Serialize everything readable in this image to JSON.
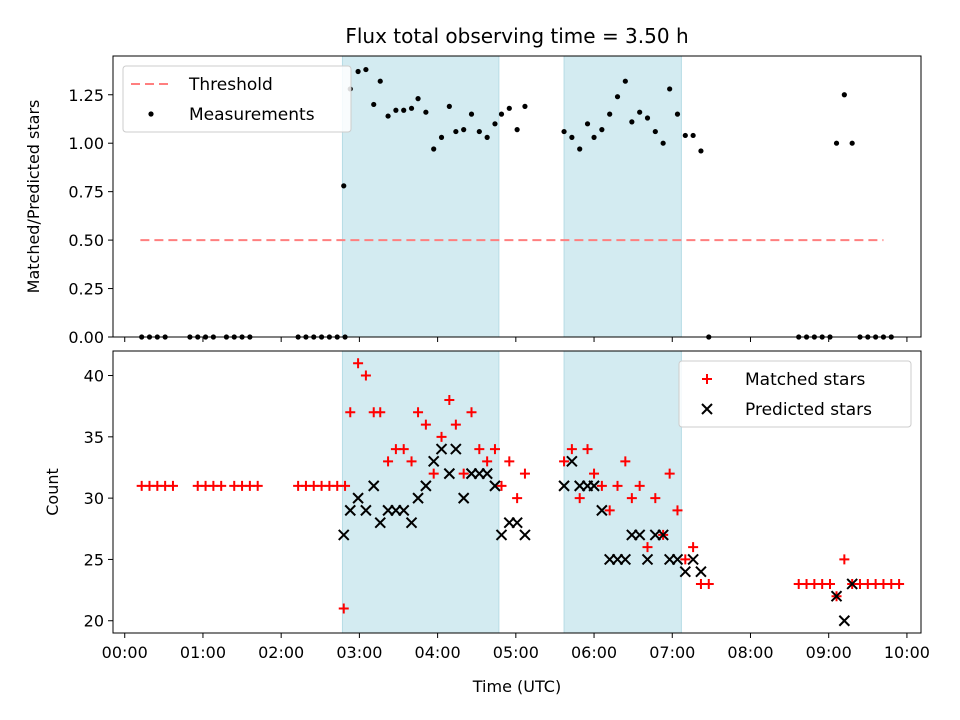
{
  "chart_data": {
    "title": "Flux total observing time = 3.50 h",
    "xlabel": "Time (UTC)",
    "x_ticks": [
      "00:00",
      "01:00",
      "02:00",
      "03:00",
      "04:00",
      "05:00",
      "06:00",
      "07:00",
      "08:00",
      "09:00",
      "10:00"
    ],
    "xlim_hours": [
      -0.15,
      10.18
    ],
    "shaded_spans": [
      {
        "start": "02:47",
        "end": "04:47",
        "color": "#d3ebf1"
      },
      {
        "start": "05:37",
        "end": "07:07",
        "color": "#d3ebf1"
      }
    ],
    "panels": [
      {
        "type": "scatter",
        "ylabel": "Matched/Predicted stars",
        "ylim": [
          0,
          1.45
        ],
        "y_ticks": [
          "0.00",
          "0.25",
          "0.50",
          "0.75",
          "1.00",
          "1.25"
        ],
        "legend_position": "top-left",
        "series": [
          {
            "name": "Threshold",
            "style": "dashed-line",
            "color": "#ff7f7f",
            "points": [
              [
                "00:12",
                0.5
              ],
              [
                "09:42",
                0.5
              ]
            ]
          },
          {
            "name": "Measurements",
            "style": "dot",
            "color": "#000000",
            "points": [
              [
                "00:13",
                0
              ],
              [
                "00:19",
                0
              ],
              [
                "00:25",
                0
              ],
              [
                "00:31",
                0
              ],
              [
                "00:50",
                0
              ],
              [
                "00:56",
                0
              ],
              [
                "01:02",
                0
              ],
              [
                "01:08",
                0
              ],
              [
                "01:18",
                0
              ],
              [
                "01:24",
                0
              ],
              [
                "01:30",
                0
              ],
              [
                "01:36",
                0
              ],
              [
                "02:13",
                0
              ],
              [
                "02:19",
                0
              ],
              [
                "02:25",
                0
              ],
              [
                "02:31",
                0
              ],
              [
                "02:37",
                0
              ],
              [
                "02:43",
                0
              ],
              [
                "02:49",
                0
              ],
              [
                "02:48",
                0.78
              ],
              [
                "02:53",
                1.28
              ],
              [
                "02:59",
                1.37
              ],
              [
                "03:05",
                1.38
              ],
              [
                "03:11",
                1.2
              ],
              [
                "03:16",
                1.32
              ],
              [
                "03:22",
                1.14
              ],
              [
                "03:28",
                1.17
              ],
              [
                "03:34",
                1.17
              ],
              [
                "03:40",
                1.18
              ],
              [
                "03:45",
                1.23
              ],
              [
                "03:51",
                1.16
              ],
              [
                "03:57",
                0.97
              ],
              [
                "04:03",
                1.03
              ],
              [
                "04:09",
                1.19
              ],
              [
                "04:14",
                1.06
              ],
              [
                "04:20",
                1.07
              ],
              [
                "04:26",
                1.15
              ],
              [
                "04:32",
                1.06
              ],
              [
                "04:38",
                1.03
              ],
              [
                "04:44",
                1.1
              ],
              [
                "04:49",
                1.15
              ],
              [
                "04:55",
                1.18
              ],
              [
                "05:01",
                1.07
              ],
              [
                "05:07",
                1.19
              ],
              [
                "05:37",
                1.06
              ],
              [
                "05:43",
                1.03
              ],
              [
                "05:49",
                0.97
              ],
              [
                "05:55",
                1.1
              ],
              [
                "06:00",
                1.03
              ],
              [
                "06:06",
                1.07
              ],
              [
                "06:12",
                1.15
              ],
              [
                "06:18",
                1.24
              ],
              [
                "06:24",
                1.32
              ],
              [
                "06:29",
                1.11
              ],
              [
                "06:35",
                1.16
              ],
              [
                "06:41",
                1.13
              ],
              [
                "06:47",
                1.06
              ],
              [
                "06:53",
                1.0
              ],
              [
                "06:58",
                1.28
              ],
              [
                "07:04",
                1.15
              ],
              [
                "07:10",
                1.04
              ],
              [
                "07:16",
                1.04
              ],
              [
                "07:22",
                0.96
              ],
              [
                "07:28",
                0
              ],
              [
                "08:37",
                0
              ],
              [
                "08:43",
                0
              ],
              [
                "08:49",
                0
              ],
              [
                "08:55",
                0
              ],
              [
                "09:01",
                0
              ],
              [
                "09:06",
                1.0
              ],
              [
                "09:12",
                1.25
              ],
              [
                "09:18",
                1.0
              ],
              [
                "09:24",
                0
              ],
              [
                "09:30",
                0
              ],
              [
                "09:36",
                0
              ],
              [
                "09:42",
                0
              ],
              [
                "09:48",
                0
              ]
            ]
          }
        ]
      },
      {
        "type": "scatter",
        "ylabel": "Count",
        "ylim": [
          19,
          42
        ],
        "y_ticks": [
          "20",
          "25",
          "30",
          "35",
          "40"
        ],
        "legend_position": "top-right",
        "series": [
          {
            "name": "Matched stars",
            "style": "plus",
            "color": "#ff0000",
            "points": [
              [
                "00:13",
                31
              ],
              [
                "00:19",
                31
              ],
              [
                "00:25",
                31
              ],
              [
                "00:31",
                31
              ],
              [
                "00:37",
                31
              ],
              [
                "00:56",
                31
              ],
              [
                "01:02",
                31
              ],
              [
                "01:08",
                31
              ],
              [
                "01:14",
                31
              ],
              [
                "01:24",
                31
              ],
              [
                "01:30",
                31
              ],
              [
                "01:36",
                31
              ],
              [
                "01:42",
                31
              ],
              [
                "02:13",
                31
              ],
              [
                "02:19",
                31
              ],
              [
                "02:25",
                31
              ],
              [
                "02:31",
                31
              ],
              [
                "02:37",
                31
              ],
              [
                "02:43",
                31
              ],
              [
                "02:49",
                31
              ],
              [
                "02:48",
                21
              ],
              [
                "02:53",
                37
              ],
              [
                "02:59",
                41
              ],
              [
                "03:05",
                40
              ],
              [
                "03:11",
                37
              ],
              [
                "03:16",
                37
              ],
              [
                "03:22",
                33
              ],
              [
                "03:28",
                34
              ],
              [
                "03:34",
                34
              ],
              [
                "03:40",
                33
              ],
              [
                "03:45",
                37
              ],
              [
                "03:51",
                36
              ],
              [
                "03:57",
                32
              ],
              [
                "04:03",
                35
              ],
              [
                "04:09",
                38
              ],
              [
                "04:14",
                36
              ],
              [
                "04:20",
                32
              ],
              [
                "04:26",
                37
              ],
              [
                "04:32",
                34
              ],
              [
                "04:38",
                33
              ],
              [
                "04:44",
                34
              ],
              [
                "04:49",
                31
              ],
              [
                "04:55",
                33
              ],
              [
                "05:01",
                30
              ],
              [
                "05:07",
                32
              ],
              [
                "05:37",
                33
              ],
              [
                "05:43",
                34
              ],
              [
                "05:49",
                30
              ],
              [
                "05:55",
                34
              ],
              [
                "06:00",
                32
              ],
              [
                "06:06",
                31
              ],
              [
                "06:12",
                29
              ],
              [
                "06:18",
                31
              ],
              [
                "06:24",
                33
              ],
              [
                "06:29",
                30
              ],
              [
                "06:35",
                31
              ],
              [
                "06:41",
                26
              ],
              [
                "06:47",
                30
              ],
              [
                "06:53",
                27
              ],
              [
                "06:58",
                32
              ],
              [
                "07:04",
                29
              ],
              [
                "07:10",
                25
              ],
              [
                "07:16",
                26
              ],
              [
                "07:22",
                23
              ],
              [
                "07:28",
                23
              ],
              [
                "08:37",
                23
              ],
              [
                "08:43",
                23
              ],
              [
                "08:49",
                23
              ],
              [
                "08:55",
                23
              ],
              [
                "09:01",
                23
              ],
              [
                "09:06",
                22
              ],
              [
                "09:12",
                25
              ],
              [
                "09:18",
                23
              ],
              [
                "09:24",
                23
              ],
              [
                "09:30",
                23
              ],
              [
                "09:36",
                23
              ],
              [
                "09:42",
                23
              ],
              [
                "09:48",
                23
              ],
              [
                "09:54",
                23
              ]
            ]
          },
          {
            "name": "Predicted stars",
            "style": "x",
            "color": "#000000",
            "points": [
              [
                "02:48",
                27
              ],
              [
                "02:53",
                29
              ],
              [
                "02:59",
                30
              ],
              [
                "03:05",
                29
              ],
              [
                "03:11",
                31
              ],
              [
                "03:16",
                28
              ],
              [
                "03:22",
                29
              ],
              [
                "03:28",
                29
              ],
              [
                "03:34",
                29
              ],
              [
                "03:40",
                28
              ],
              [
                "03:45",
                30
              ],
              [
                "03:51",
                31
              ],
              [
                "03:57",
                33
              ],
              [
                "04:03",
                34
              ],
              [
                "04:09",
                32
              ],
              [
                "04:14",
                34
              ],
              [
                "04:20",
                30
              ],
              [
                "04:26",
                32
              ],
              [
                "04:32",
                32
              ],
              [
                "04:38",
                32
              ],
              [
                "04:44",
                31
              ],
              [
                "04:49",
                27
              ],
              [
                "04:55",
                28
              ],
              [
                "05:01",
                28
              ],
              [
                "05:07",
                27
              ],
              [
                "05:37",
                31
              ],
              [
                "05:43",
                33
              ],
              [
                "05:49",
                31
              ],
              [
                "05:55",
                31
              ],
              [
                "06:00",
                31
              ],
              [
                "06:06",
                29
              ],
              [
                "06:12",
                25
              ],
              [
                "06:18",
                25
              ],
              [
                "06:24",
                25
              ],
              [
                "06:29",
                27
              ],
              [
                "06:35",
                27
              ],
              [
                "06:41",
                25
              ],
              [
                "06:47",
                27
              ],
              [
                "06:53",
                27
              ],
              [
                "06:58",
                25
              ],
              [
                "07:04",
                25
              ],
              [
                "07:10",
                24
              ],
              [
                "07:16",
                25
              ],
              [
                "07:22",
                24
              ],
              [
                "09:06",
                22
              ],
              [
                "09:12",
                20
              ],
              [
                "09:18",
                23
              ]
            ]
          }
        ]
      }
    ]
  }
}
